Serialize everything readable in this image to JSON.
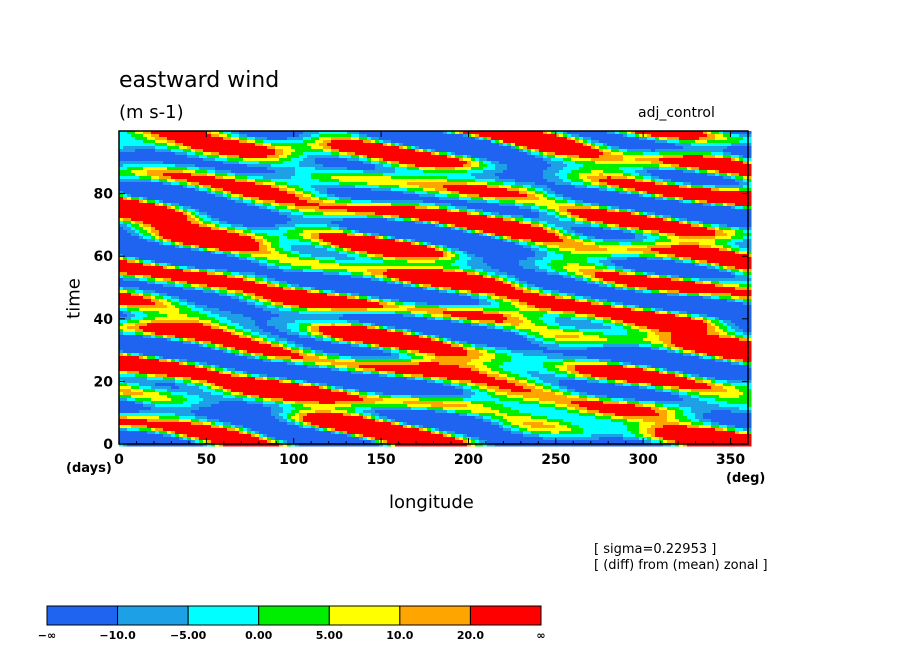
{
  "chart_data": {
    "type": "heatmap",
    "title": "eastward wind",
    "units": "(m s-1)",
    "run_label": "adj_control",
    "xlabel": "longitude",
    "ylabel": "time",
    "x_unit": "(deg)",
    "y_unit": "(days)",
    "xlim": [
      0,
      360
    ],
    "ylim": [
      0,
      100
    ],
    "x_ticks": [
      0,
      50,
      100,
      150,
      200,
      250,
      300,
      350
    ],
    "y_ticks": [
      0,
      20,
      40,
      60,
      80
    ],
    "notes": [
      "[ sigma=0.22953 ]",
      "[ (diff) from (mean) zonal ]"
    ],
    "colorbar": {
      "labels": [
        "−∞",
        "−10.0",
        "−5.00",
        "0.00",
        "5.00",
        "10.0",
        "20.0",
        "∞"
      ],
      "colors": [
        "#1e64f0",
        "#1ea0e6",
        "#00ffff",
        "#00ee00",
        "#ffff00",
        "#ffa500",
        "#ff0000"
      ]
    }
  }
}
